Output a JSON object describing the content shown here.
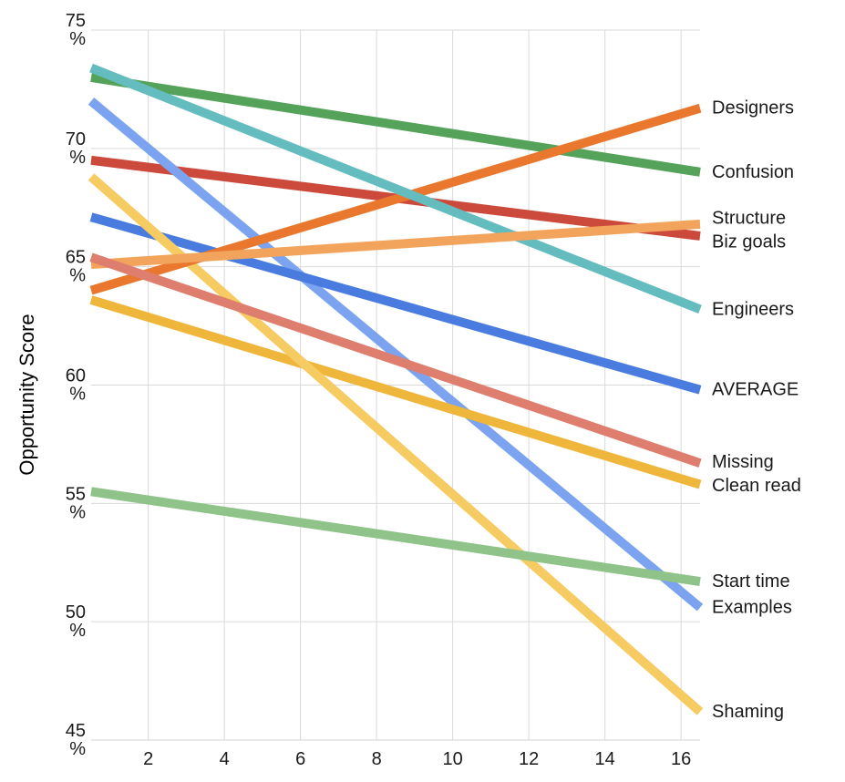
{
  "chart_data": {
    "type": "line",
    "title": "",
    "ylabel": "Opportunity Score",
    "xlabel": "",
    "y_axis": {
      "min": 45,
      "max": 75,
      "tick_suffix": "%",
      "ticks": [
        45,
        50,
        55,
        60,
        65,
        70,
        75
      ]
    },
    "x_axis": {
      "min": 0.5,
      "max": 16.5,
      "ticks": [
        2,
        4,
        6,
        8,
        10,
        12,
        14,
        16
      ]
    },
    "grid_on": true,
    "legend_position": "right-edge-labels",
    "series": [
      {
        "name": "Designers",
        "color": "#E9772E",
        "start": 64.0,
        "end": 71.7
      },
      {
        "name": "Confusion",
        "color": "#55A25B",
        "start": 73.0,
        "end": 69.0
      },
      {
        "name": "Structure",
        "color": "#F3A45C",
        "start": 65.1,
        "end": 66.8
      },
      {
        "name": "Biz goals",
        "color": "#CC4A3B",
        "start": 69.5,
        "end": 66.3
      },
      {
        "name": "Engineers",
        "color": "#64BCBF",
        "start": 73.4,
        "end": 63.2
      },
      {
        "name": "AVERAGE",
        "color": "#4A7CE0",
        "start": 67.1,
        "end": 59.8
      },
      {
        "name": "Missing",
        "color": "#DE7E6F",
        "start": 65.4,
        "end": 56.7
      },
      {
        "name": "Clean read",
        "color": "#EFB63C",
        "start": 63.6,
        "end": 55.8
      },
      {
        "name": "Start time",
        "color": "#8FC38A",
        "start": 55.5,
        "end": 51.7
      },
      {
        "name": "Examples",
        "color": "#7BA3EF",
        "start": 72.0,
        "end": 50.6
      },
      {
        "name": "Shaming",
        "color": "#F5CB62",
        "start": 68.8,
        "end": 46.2
      }
    ],
    "z_order": [
      "Biz goals",
      "Confusion",
      "Examples",
      "AVERAGE",
      "Clean read",
      "Shaming",
      "Designers",
      "Engineers",
      "Structure",
      "Missing",
      "Start time"
    ]
  },
  "style": {
    "grid_color": "#D9D9D9",
    "axis_line_color": "#D0D0D0",
    "text_color": "#1A1A1A",
    "background": "#FFFFFF",
    "line_width": 10
  }
}
